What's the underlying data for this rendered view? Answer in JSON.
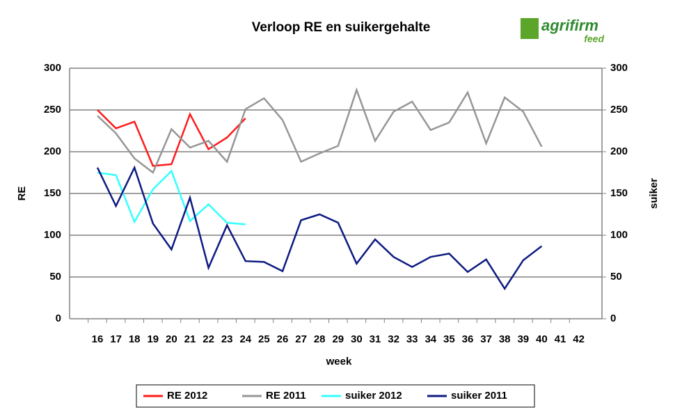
{
  "chart_data": {
    "type": "line",
    "title": "Verloop RE en suikergehalte",
    "logo": {
      "name": "agrifirm",
      "sub": "feed"
    },
    "x_label": "week",
    "y_label": "RE",
    "y2_label": "suiker",
    "categories": [
      "16",
      "17",
      "18",
      "19",
      "20",
      "21",
      "22",
      "23",
      "24",
      "25",
      "26",
      "27",
      "28",
      "29",
      "30",
      "31",
      "32",
      "33",
      "34",
      "35",
      "36",
      "37",
      "38",
      "39",
      "40",
      "41",
      "42"
    ],
    "ylim": [
      0,
      300
    ],
    "yticks": [
      0,
      50,
      100,
      150,
      200,
      250,
      300
    ],
    "y2lim": [
      0,
      300
    ],
    "y2ticks": [
      0,
      50,
      100,
      150,
      200,
      250,
      300
    ],
    "grid": true,
    "legend": "bottom",
    "series": [
      {
        "name": "RE 2012",
        "color": "#ff1a1a",
        "values": [
          250,
          228,
          236,
          183,
          185,
          245,
          203,
          217,
          240,
          null,
          null,
          null,
          null,
          null,
          null,
          null,
          null,
          null,
          null,
          null,
          null,
          null,
          null,
          null,
          null,
          null,
          null
        ]
      },
      {
        "name": "RE 2011",
        "color": "#969696",
        "values": [
          243,
          222,
          192,
          175,
          227,
          205,
          213,
          188,
          251,
          264,
          238,
          188,
          198,
          207,
          274,
          213,
          248,
          260,
          226,
          235,
          271,
          210,
          265,
          248,
          206,
          null,
          null
        ]
      },
      {
        "name": "suiker 2012",
        "color": "#33ffff",
        "axis": "y2",
        "values": [
          175,
          172,
          116,
          155,
          177,
          117,
          137,
          115,
          113,
          null,
          null,
          null,
          null,
          null,
          null,
          null,
          null,
          null,
          null,
          null,
          null,
          null,
          null,
          null,
          null,
          null,
          null
        ]
      },
      {
        "name": "suiker 2011",
        "color": "#0d1a80",
        "axis": "y2",
        "values": [
          181,
          135,
          181,
          114,
          83,
          145,
          61,
          112,
          69,
          68,
          57,
          118,
          125,
          115,
          66,
          95,
          74,
          62,
          74,
          78,
          56,
          71,
          36,
          70,
          87,
          null,
          null
        ]
      }
    ]
  }
}
